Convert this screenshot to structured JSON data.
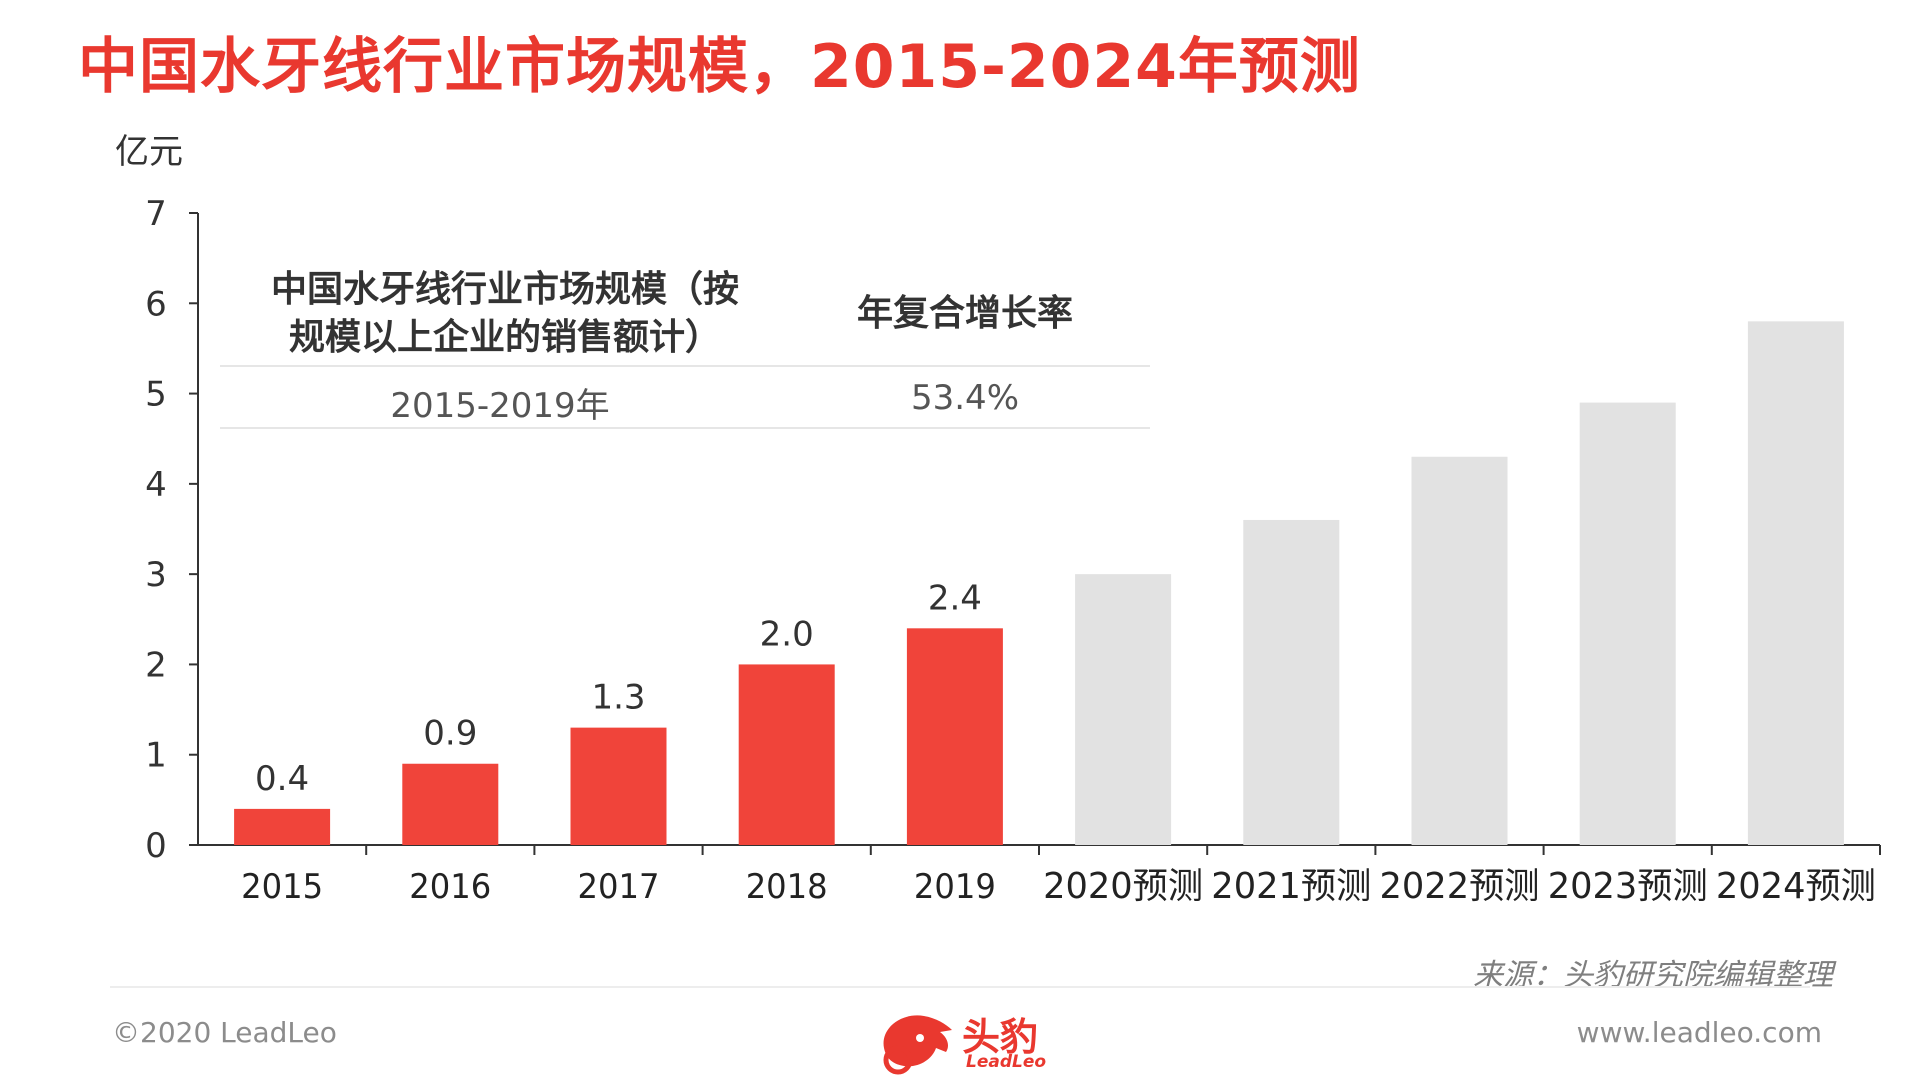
{
  "title": "中国水牙线行业市场规模，2015-2024年预测",
  "unit_label": "亿元",
  "cagr_table": {
    "col1_header_line1": "中国水牙线行业市场规模（按",
    "col1_header_line2": "规模以上企业的销售额计）",
    "col2_header": "年复合增长率",
    "row_period": "2015-2019年",
    "row_rate": "53.4%"
  },
  "chart_data": {
    "type": "bar",
    "categories": [
      "2015",
      "2016",
      "2017",
      "2018",
      "2019",
      "2020预测",
      "2021预测",
      "2022预测",
      "2023预测",
      "2024预测"
    ],
    "values": [
      0.4,
      0.9,
      1.3,
      2.0,
      2.4,
      3.0,
      3.6,
      4.3,
      4.9,
      5.8
    ],
    "data_labels": [
      "0.4",
      "0.9",
      "1.3",
      "2.0",
      "2.4",
      "",
      "",
      "",
      "",
      ""
    ],
    "ylabel": "亿元",
    "ylim": [
      0,
      7
    ],
    "yticks": [
      "0",
      "1",
      "2",
      "3",
      "4",
      "5",
      "6",
      "7"
    ],
    "grid": false,
    "colors": {
      "actual": "#f0443a",
      "forecast": "#e2e2e2",
      "axis": "#333333"
    }
  },
  "source": "来源：头豹研究院编辑整理",
  "footer": {
    "copyright": "©2020 LeadLeo",
    "website": "www.leadleo.com",
    "logo_text": "头豹",
    "logo_sub": "LeadLeo"
  }
}
